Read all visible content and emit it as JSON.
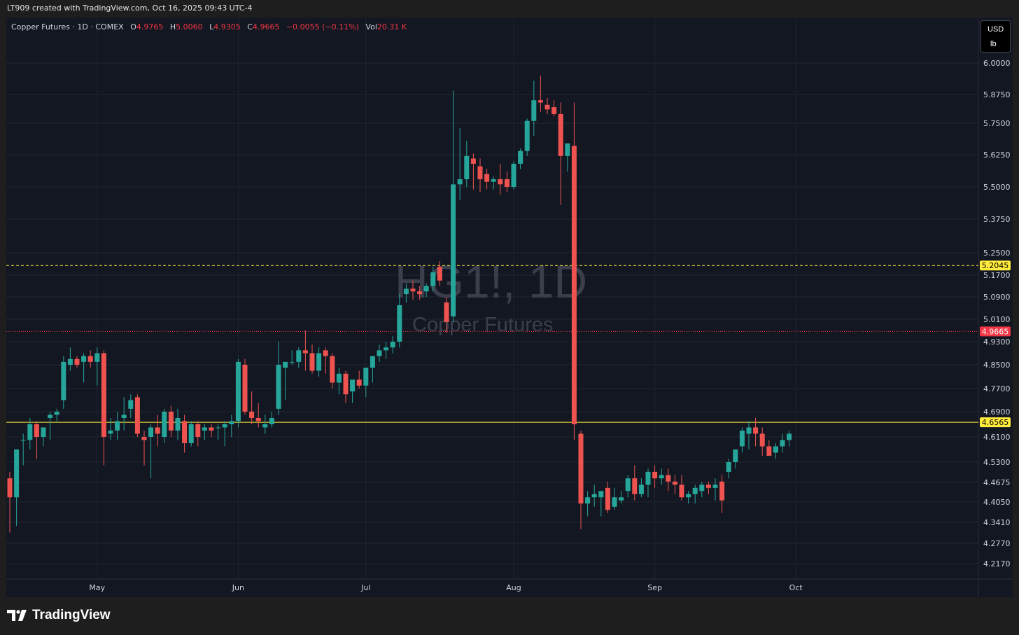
{
  "header": {
    "caption": "LT909 created with TradingView.com, Oct 16, 2025 09:43 UTC-4"
  },
  "legend": {
    "symbol": "Copper Futures · 1D · COMEX",
    "open_label": "O",
    "open": "4.9765",
    "high_label": "H",
    "high": "5.0060",
    "low_label": "L",
    "low": "4.9305",
    "close_label": "C",
    "close": "4.9665",
    "change": "−0.0055 (−0.11%)",
    "vol_label": "Vol",
    "vol": "20.31 K"
  },
  "units": {
    "currency": "USD",
    "unit": "lb"
  },
  "footer": {
    "brand": "TradingView"
  },
  "chart_data": {
    "type": "candlestick",
    "watermark": {
      "symbol": "HG1!, 1D",
      "name": "Copper Futures"
    },
    "y_ticks": [
      "6.0000",
      "5.8750",
      "5.7500",
      "5.6250",
      "5.5000",
      "5.3750",
      "5.2500",
      "5.1700",
      "5.0900",
      "5.0100",
      "4.9300",
      "4.8500",
      "4.7700",
      "4.6900",
      "4.6100",
      "4.5300",
      "4.4675",
      "4.4050",
      "4.3410",
      "4.2770",
      "4.2170"
    ],
    "x_ticks": [
      {
        "label": "May",
        "index": 13
      },
      {
        "label": "Jun",
        "index": 34
      },
      {
        "label": "Jul",
        "index": 53
      },
      {
        "label": "Aug",
        "index": 75
      },
      {
        "label": "Sep",
        "index": 96
      },
      {
        "label": "Oct",
        "index": 117
      }
    ],
    "hlines": [
      {
        "value": 5.2045,
        "label": "5.2045",
        "color": "#ffeb3b",
        "style": "dashed"
      },
      {
        "value": 4.6565,
        "label": "4.6565",
        "color": "#ffeb3b",
        "style": "solid"
      }
    ],
    "last_price": {
      "value": 4.9665,
      "label": "4.9665",
      "color": "#f23645"
    },
    "colors": {
      "up": "#26a69a",
      "down": "#ef5350",
      "background": "#131722",
      "grid": "#1f2430",
      "text": "#d1d4dc"
    },
    "candles": [
      [
        4.48,
        4.5,
        4.31,
        4.42
      ],
      [
        4.42,
        4.57,
        4.33,
        4.57
      ],
      [
        4.6,
        4.62,
        4.52,
        4.6
      ],
      [
        4.6,
        4.67,
        4.57,
        4.65
      ],
      [
        4.65,
        4.66,
        4.54,
        4.61
      ],
      [
        4.61,
        4.63,
        4.58,
        4.64
      ],
      [
        4.67,
        4.69,
        4.6,
        4.68
      ],
      [
        4.68,
        4.7,
        4.66,
        4.69
      ],
      [
        4.73,
        4.88,
        4.7,
        4.86
      ],
      [
        4.85,
        4.91,
        4.83,
        4.87
      ],
      [
        4.87,
        4.88,
        4.84,
        4.85
      ],
      [
        4.86,
        4.89,
        4.79,
        4.88
      ],
      [
        4.88,
        4.9,
        4.84,
        4.86
      ],
      [
        4.86,
        4.91,
        4.78,
        4.89
      ],
      [
        4.89,
        4.9,
        4.52,
        4.61
      ],
      [
        4.62,
        4.67,
        4.6,
        4.63
      ],
      [
        4.63,
        4.69,
        4.6,
        4.66
      ],
      [
        4.67,
        4.74,
        4.63,
        4.68
      ],
      [
        4.7,
        4.75,
        4.67,
        4.73
      ],
      [
        4.74,
        4.75,
        4.61,
        4.62
      ],
      [
        4.61,
        4.63,
        4.52,
        4.6
      ],
      [
        4.61,
        4.65,
        4.48,
        4.64
      ],
      [
        4.64,
        4.68,
        4.58,
        4.62
      ],
      [
        4.61,
        4.7,
        4.59,
        4.69
      ],
      [
        4.69,
        4.71,
        4.61,
        4.63
      ],
      [
        4.63,
        4.7,
        4.6,
        4.67
      ],
      [
        4.66,
        4.68,
        4.56,
        4.59
      ],
      [
        4.59,
        4.66,
        4.58,
        4.65
      ],
      [
        4.65,
        4.66,
        4.58,
        4.61
      ],
      [
        4.63,
        4.65,
        4.6,
        4.64
      ],
      [
        4.64,
        4.65,
        4.61,
        4.63
      ],
      [
        4.64,
        4.65,
        4.6,
        4.64
      ],
      [
        4.64,
        4.66,
        4.58,
        4.65
      ],
      [
        4.65,
        4.68,
        4.61,
        4.66
      ],
      [
        4.66,
        4.87,
        4.64,
        4.86
      ],
      [
        4.85,
        4.87,
        4.68,
        4.69
      ],
      [
        4.69,
        4.76,
        4.65,
        4.67
      ],
      [
        4.67,
        4.72,
        4.64,
        4.66
      ],
      [
        4.64,
        4.68,
        4.62,
        4.65
      ],
      [
        4.65,
        4.69,
        4.64,
        4.67
      ],
      [
        4.7,
        4.93,
        4.68,
        4.85
      ],
      [
        4.84,
        4.86,
        4.73,
        4.86
      ],
      [
        4.86,
        4.9,
        4.85,
        4.86
      ],
      [
        4.86,
        4.91,
        4.84,
        4.9
      ],
      [
        4.9,
        4.97,
        4.83,
        4.89
      ],
      [
        4.89,
        4.92,
        4.82,
        4.83
      ],
      [
        4.83,
        4.91,
        4.81,
        4.89
      ],
      [
        4.9,
        4.91,
        4.82,
        4.88
      ],
      [
        4.88,
        4.89,
        4.77,
        4.79
      ],
      [
        4.79,
        4.84,
        4.75,
        4.82
      ],
      [
        4.82,
        4.83,
        4.72,
        4.75
      ],
      [
        4.76,
        4.79,
        4.72,
        4.8
      ],
      [
        4.8,
        4.83,
        4.77,
        4.78
      ],
      [
        4.78,
        4.84,
        4.74,
        4.84
      ],
      [
        4.84,
        4.88,
        4.79,
        4.88
      ],
      [
        4.88,
        4.92,
        4.86,
        4.9
      ],
      [
        4.9,
        4.93,
        4.87,
        4.91
      ],
      [
        4.91,
        4.95,
        4.89,
        4.93
      ],
      [
        4.93,
        5.1,
        4.91,
        5.06
      ],
      [
        5.1,
        5.14,
        5.07,
        5.12
      ],
      [
        5.12,
        5.15,
        5.08,
        5.11
      ],
      [
        5.11,
        5.13,
        5.08,
        5.1
      ],
      [
        5.11,
        5.14,
        5.09,
        5.13
      ],
      [
        5.13,
        5.2,
        5.11,
        5.18
      ],
      [
        5.2,
        5.22,
        5.13,
        5.15
      ],
      [
        5.07,
        5.09,
        4.96,
        5.0
      ],
      [
        5.02,
        5.89,
        5.0,
        5.51
      ],
      [
        5.51,
        5.73,
        5.45,
        5.53
      ],
      [
        5.53,
        5.68,
        5.5,
        5.62
      ],
      [
        5.61,
        5.63,
        5.49,
        5.59
      ],
      [
        5.58,
        5.61,
        5.48,
        5.53
      ],
      [
        5.55,
        5.57,
        5.49,
        5.52
      ],
      [
        5.52,
        5.54,
        5.49,
        5.53
      ],
      [
        5.53,
        5.59,
        5.47,
        5.51
      ],
      [
        5.53,
        5.56,
        5.48,
        5.5
      ],
      [
        5.5,
        5.6,
        5.49,
        5.59
      ],
      [
        5.59,
        5.65,
        5.57,
        5.64
      ],
      [
        5.64,
        5.77,
        5.62,
        5.76
      ],
      [
        5.76,
        5.93,
        5.7,
        5.85
      ],
      [
        5.85,
        5.95,
        5.8,
        5.84
      ],
      [
        5.83,
        5.86,
        5.79,
        5.81
      ],
      [
        5.82,
        5.85,
        5.78,
        5.79
      ],
      [
        5.79,
        5.84,
        5.43,
        5.62
      ],
      [
        5.62,
        5.66,
        5.56,
        5.67
      ],
      [
        5.66,
        5.84,
        4.6,
        4.65
      ],
      [
        4.62,
        4.63,
        4.32,
        4.4
      ],
      [
        4.4,
        4.44,
        4.36,
        4.42
      ],
      [
        4.42,
        4.46,
        4.39,
        4.43
      ],
      [
        4.42,
        4.44,
        4.36,
        4.44
      ],
      [
        4.45,
        4.47,
        4.37,
        4.38
      ],
      [
        4.39,
        4.45,
        4.38,
        4.42
      ],
      [
        4.41,
        4.44,
        4.4,
        4.42
      ],
      [
        4.44,
        4.49,
        4.42,
        4.48
      ],
      [
        4.48,
        4.52,
        4.41,
        4.43
      ],
      [
        4.43,
        4.48,
        4.42,
        4.46
      ],
      [
        4.46,
        4.51,
        4.42,
        4.5
      ],
      [
        4.5,
        4.52,
        4.45,
        4.48
      ],
      [
        4.48,
        4.51,
        4.46,
        4.49
      ],
      [
        4.49,
        4.51,
        4.44,
        4.47
      ],
      [
        4.47,
        4.49,
        4.43,
        4.46
      ],
      [
        4.46,
        4.49,
        4.41,
        4.42
      ],
      [
        4.42,
        4.44,
        4.4,
        4.43
      ],
      [
        4.43,
        4.46,
        4.4,
        4.45
      ],
      [
        4.44,
        4.47,
        4.42,
        4.46
      ],
      [
        4.46,
        4.47,
        4.43,
        4.45
      ],
      [
        4.45,
        4.48,
        4.41,
        4.46
      ],
      [
        4.47,
        4.49,
        4.37,
        4.41
      ],
      [
        4.5,
        4.54,
        4.48,
        4.53
      ],
      [
        4.53,
        4.57,
        4.51,
        4.57
      ],
      [
        4.58,
        4.64,
        4.56,
        4.63
      ],
      [
        4.62,
        4.66,
        4.57,
        4.64
      ],
      [
        4.64,
        4.67,
        4.58,
        4.62
      ],
      [
        4.62,
        4.64,
        4.55,
        4.58
      ],
      [
        4.58,
        4.6,
        4.55,
        4.55
      ],
      [
        4.56,
        4.59,
        4.54,
        4.58
      ],
      [
        4.58,
        4.62,
        4.56,
        4.6
      ],
      [
        4.6,
        4.63,
        4.58,
        4.62
      ]
    ]
  }
}
